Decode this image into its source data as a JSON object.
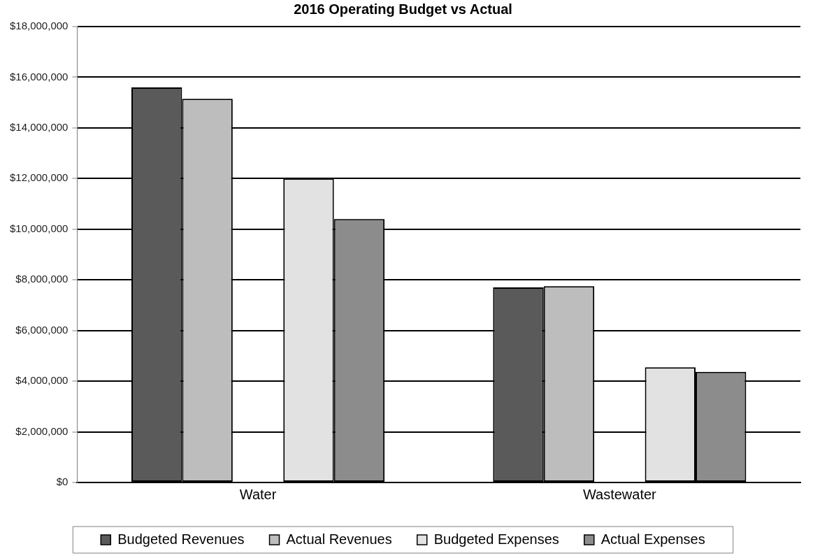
{
  "chart_data": {
    "type": "bar",
    "title": "2016 Operating Budget vs Actual",
    "categories": [
      "Water",
      "Wastewater"
    ],
    "series": [
      {
        "name": "Budgeted Revenues",
        "color": "#5a5a5a",
        "values": [
          15600000,
          7700000
        ]
      },
      {
        "name": "Actual Revenues",
        "color": "#bdbdbd",
        "values": [
          15150000,
          7750000
        ]
      },
      {
        "values": [
          null,
          null
        ]
      },
      {
        "name": "Budgeted Expenses",
        "color": "#e2e2e2",
        "values": [
          12000000,
          4550000
        ]
      },
      {
        "name": "Actual Expenses",
        "color": "#8c8c8c",
        "values": [
          10400000,
          4370000
        ]
      }
    ],
    "ylim": [
      0,
      18000000
    ],
    "yticks": [
      {
        "value": 0,
        "label": "$0"
      },
      {
        "value": 2000000,
        "label": "$2,000,000"
      },
      {
        "value": 4000000,
        "label": "$4,000,000"
      },
      {
        "value": 6000000,
        "label": "$6,000,000"
      },
      {
        "value": 8000000,
        "label": "$8,000,000"
      },
      {
        "value": 10000000,
        "label": "$10,000,000"
      },
      {
        "value": 12000000,
        "label": "$12,000,000"
      },
      {
        "value": 14000000,
        "label": "$14,000,000"
      },
      {
        "value": 16000000,
        "label": "$16,000,000"
      },
      {
        "value": 18000000,
        "label": "$18,000,000"
      }
    ],
    "grid": "y",
    "legend": "bottom"
  }
}
